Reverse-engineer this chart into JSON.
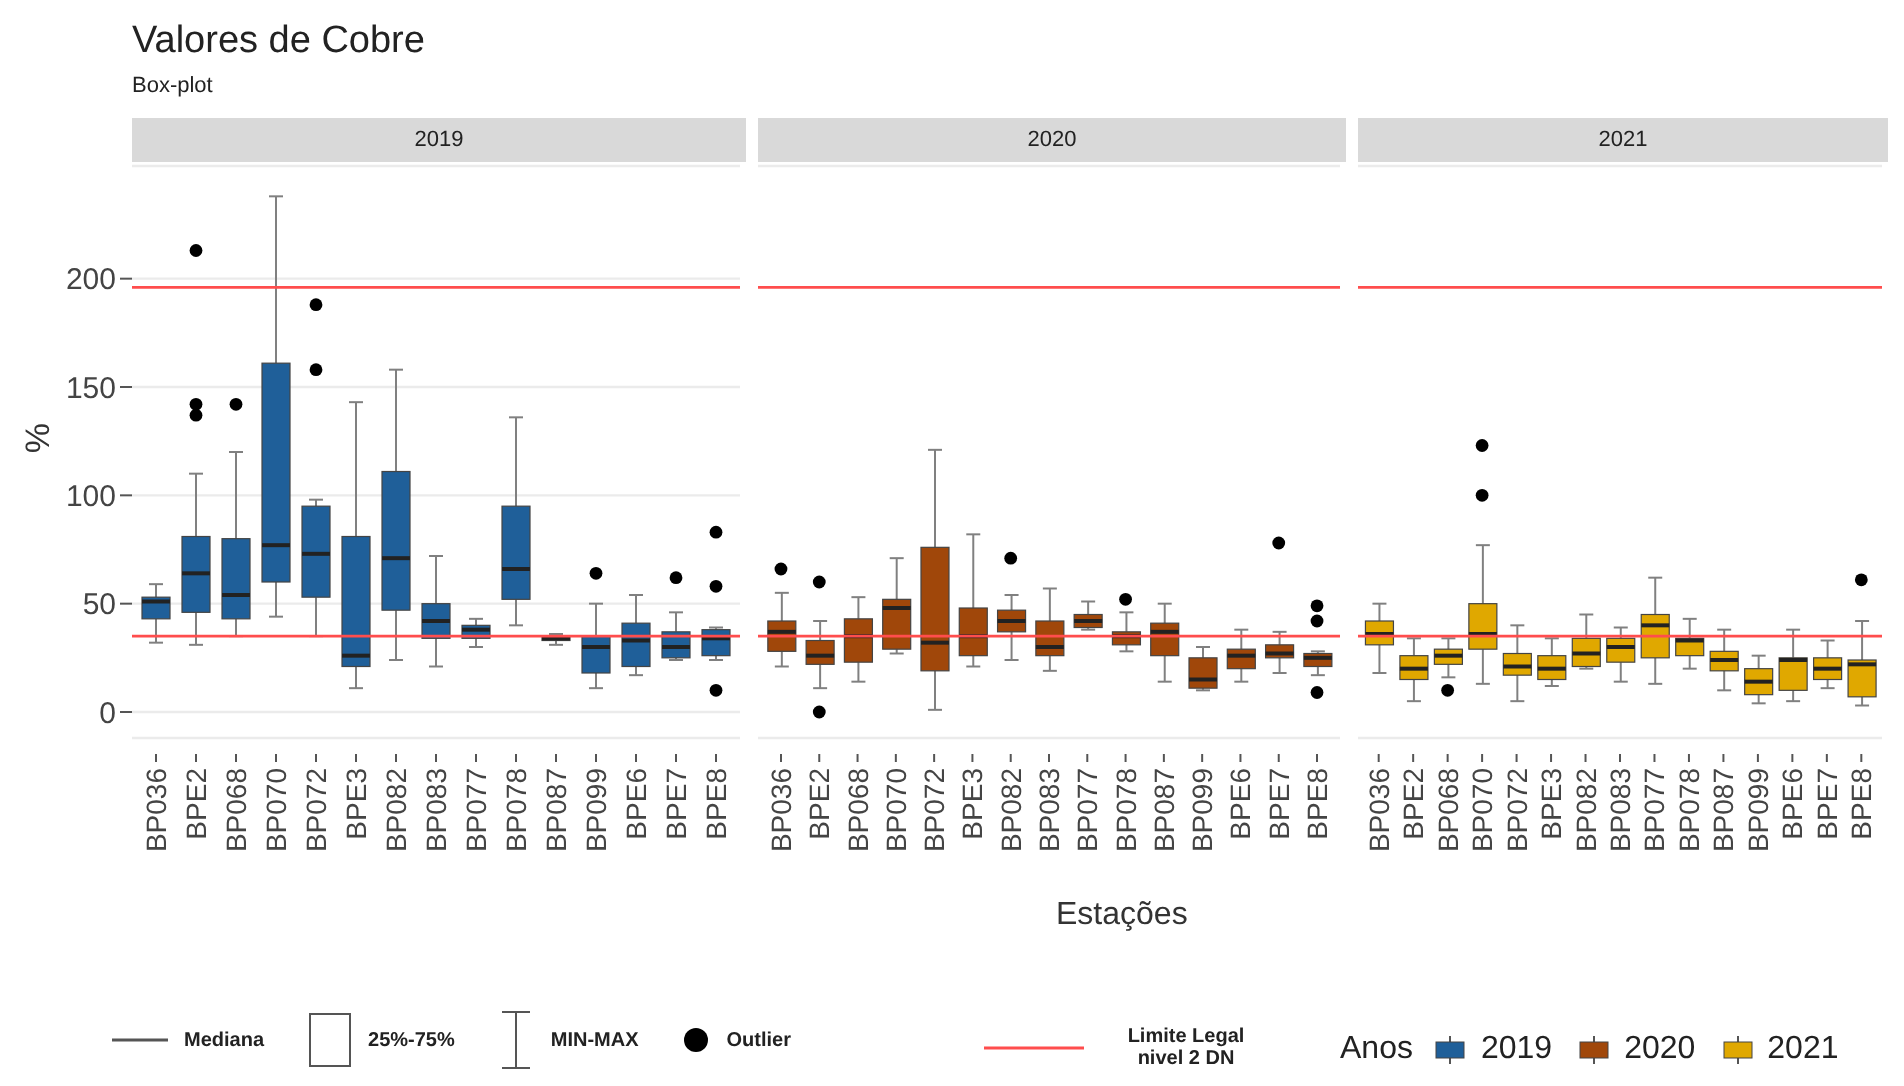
{
  "chart_data": [
    {
      "type": "box",
      "title": "Valores de Cobre",
      "subtitle": "Box-plot",
      "ylabel": "%",
      "categories": [
        "BP036",
        "BPE2",
        "BP068",
        "BP070",
        "BP072",
        "BPE3",
        "BP082",
        "BP083",
        "BP077",
        "BP078",
        "BP087",
        "BP099",
        "BPE6",
        "BPE7",
        "BPE8"
      ],
      "series": [
        {
          "name": "2019",
          "color": "#1f5f99",
          "boxes": [
            {
              "low": 32,
              "q1": 43,
              "median": 51,
              "q3": 53,
              "high": 59
            },
            {
              "low": 31,
              "q1": 46,
              "median": 64,
              "q3": 81,
              "high": 110,
              "outliers": [
                213,
                142,
                137
              ]
            },
            {
              "low": 35,
              "q1": 43,
              "median": 54,
              "q3": 80,
              "high": 120,
              "outliers": [
                142
              ]
            },
            {
              "low": 44,
              "q1": 60,
              "median": 77,
              "q3": 161,
              "high": 238
            },
            {
              "low": 35,
              "q1": 53,
              "median": 73,
              "q3": 95,
              "high": 98,
              "outliers": [
                188,
                158
              ]
            },
            {
              "low": 11,
              "q1": 21,
              "median": 26,
              "q3": 81,
              "high": 143
            },
            {
              "low": 24,
              "q1": 47,
              "median": 71,
              "q3": 111,
              "high": 158
            },
            {
              "low": 21,
              "q1": 34,
              "median": 42,
              "q3": 50,
              "high": 72
            },
            {
              "low": 30,
              "q1": 34,
              "median": 38,
              "q3": 40,
              "high": 43
            },
            {
              "low": 40,
              "q1": 52,
              "median": 66,
              "q3": 95,
              "high": 136
            },
            {
              "low": 31,
              "q1": 33,
              "median": 34,
              "q3": 35,
              "high": 36
            },
            {
              "low": 11,
              "q1": 18,
              "median": 30,
              "q3": 35,
              "high": 50,
              "outliers": [
                64
              ]
            },
            {
              "low": 17,
              "q1": 21,
              "median": 33,
              "q3": 41,
              "high": 54
            },
            {
              "low": 24,
              "q1": 25,
              "median": 30,
              "q3": 37,
              "high": 46,
              "outliers": [
                62
              ]
            },
            {
              "low": 24,
              "q1": 26,
              "median": 34,
              "q3": 38,
              "high": 39,
              "outliers": [
                83,
                58,
                10
              ]
            }
          ]
        }
      ],
      "ylim": [
        -12,
        252
      ],
      "yticks": [
        0,
        50,
        100,
        150,
        200
      ],
      "grid": "y",
      "marker": "circle",
      "legend": "bottom",
      "ref_lines": [
        {
          "axis": "y",
          "value": 196,
          "label": "Limite Legal nivel 2 DN",
          "color": "#ff4d4d"
        },
        {
          "axis": "y",
          "value": 35,
          "color": "#ff4d4d"
        }
      ],
      "annotations": [
        "Mediana",
        "25%-75%",
        "MIN-MAX",
        "Outlier"
      ]
    },
    {
      "type": "box",
      "xlabel": "Estações",
      "categories": [
        "BP036",
        "BPE2",
        "BP068",
        "BP070",
        "BP072",
        "BPE3",
        "BP082",
        "BP083",
        "BP077",
        "BP078",
        "BP087",
        "BP099",
        "BPE6",
        "BPE7",
        "BPE8"
      ],
      "series": [
        {
          "name": "2020",
          "color": "#a0470a",
          "boxes": [
            {
              "low": 21,
              "q1": 28,
              "median": 37,
              "q3": 42,
              "high": 55,
              "outliers": [
                66
              ]
            },
            {
              "low": 11,
              "q1": 22,
              "median": 26,
              "q3": 33,
              "high": 42,
              "outliers": [
                60,
                0
              ]
            },
            {
              "low": 14,
              "q1": 23,
              "median": 35,
              "q3": 43,
              "high": 53
            },
            {
              "low": 27,
              "q1": 29,
              "median": 48,
              "q3": 52,
              "high": 71
            },
            {
              "low": 1,
              "q1": 19,
              "median": 32,
              "q3": 76,
              "high": 121
            },
            {
              "low": 21,
              "q1": 26,
              "median": 35,
              "q3": 48,
              "high": 82
            },
            {
              "low": 24,
              "q1": 37,
              "median": 42,
              "q3": 47,
              "high": 54,
              "outliers": [
                71
              ]
            },
            {
              "low": 19,
              "q1": 26,
              "median": 30,
              "q3": 42,
              "high": 57
            },
            {
              "low": 38,
              "q1": 39,
              "median": 42,
              "q3": 45,
              "high": 51
            },
            {
              "low": 28,
              "q1": 31,
              "median": 35,
              "q3": 37,
              "high": 46,
              "outliers": [
                52
              ]
            },
            {
              "low": 14,
              "q1": 26,
              "median": 37,
              "q3": 41,
              "high": 50
            },
            {
              "low": 10,
              "q1": 11,
              "median": 15,
              "q3": 25,
              "high": 30
            },
            {
              "low": 14,
              "q1": 20,
              "median": 26,
              "q3": 29,
              "high": 38
            },
            {
              "low": 18,
              "q1": 25,
              "median": 27,
              "q3": 31,
              "high": 37,
              "outliers": [
                78
              ]
            },
            {
              "low": 17,
              "q1": 21,
              "median": 25,
              "q3": 27,
              "high": 28,
              "outliers": [
                49,
                42,
                9
              ]
            }
          ]
        }
      ],
      "ylim": [
        -12,
        252
      ],
      "yticks": [
        0,
        50,
        100,
        150,
        200
      ],
      "grid": "y",
      "marker": "circle",
      "legend": "bottom",
      "tick_labels": "x",
      "ref_lines": [
        {
          "axis": "y",
          "value": 196,
          "color": "#ff4d4d"
        },
        {
          "axis": "y",
          "value": 35,
          "color": "#ff4d4d"
        }
      ]
    },
    {
      "type": "box",
      "legend_title": "Anos",
      "categories": [
        "BP036",
        "BPE2",
        "BP068",
        "BP070",
        "BP072",
        "BPE3",
        "BP082",
        "BP083",
        "BP077",
        "BP078",
        "BP087",
        "BP099",
        "BPE6",
        "BPE7",
        "BPE8"
      ],
      "series": [
        {
          "name": "2021",
          "color": "#e0a800",
          "boxes": [
            {
              "low": 18,
              "q1": 31,
              "median": 36,
              "q3": 42,
              "high": 50
            },
            {
              "low": 5,
              "q1": 15,
              "median": 20,
              "q3": 26,
              "high": 34
            },
            {
              "low": 16,
              "q1": 22,
              "median": 26,
              "q3": 29,
              "high": 34,
              "outliers": [
                10
              ]
            },
            {
              "low": 13,
              "q1": 29,
              "median": 36,
              "q3": 50,
              "high": 77,
              "outliers": [
                100,
                123
              ]
            },
            {
              "low": 5,
              "q1": 17,
              "median": 21,
              "q3": 27,
              "high": 40
            },
            {
              "low": 12,
              "q1": 15,
              "median": 20,
              "q3": 26,
              "high": 34
            },
            {
              "low": 20,
              "q1": 21,
              "median": 27,
              "q3": 34,
              "high": 45
            },
            {
              "low": 14,
              "q1": 23,
              "median": 30,
              "q3": 34,
              "high": 39
            },
            {
              "low": 13,
              "q1": 25,
              "median": 40,
              "q3": 45,
              "high": 62
            },
            {
              "low": 20,
              "q1": 26,
              "median": 33,
              "q3": 34,
              "high": 43
            },
            {
              "low": 10,
              "q1": 19,
              "median": 24,
              "q3": 28,
              "high": 38
            },
            {
              "low": 4,
              "q1": 8,
              "median": 14,
              "q3": 20,
              "high": 26
            },
            {
              "low": 5,
              "q1": 10,
              "median": 24,
              "q3": 25,
              "high": 38
            },
            {
              "low": 11,
              "q1": 15,
              "median": 20,
              "q3": 25,
              "high": 33
            },
            {
              "low": 3,
              "q1": 7,
              "median": 22,
              "q3": 24,
              "high": 42,
              "outliers": [
                61
              ]
            }
          ]
        }
      ],
      "ylim": [
        -12,
        252
      ],
      "yticks": [
        0,
        50,
        100,
        150,
        200
      ],
      "grid": "y",
      "marker": "circle",
      "legend": "bottom",
      "tick_labels": "x",
      "ref_lines": [
        {
          "axis": "y",
          "value": 196,
          "color": "#ff4d4d"
        },
        {
          "axis": "y",
          "value": 35,
          "color": "#ff4d4d"
        }
      ]
    }
  ]
}
